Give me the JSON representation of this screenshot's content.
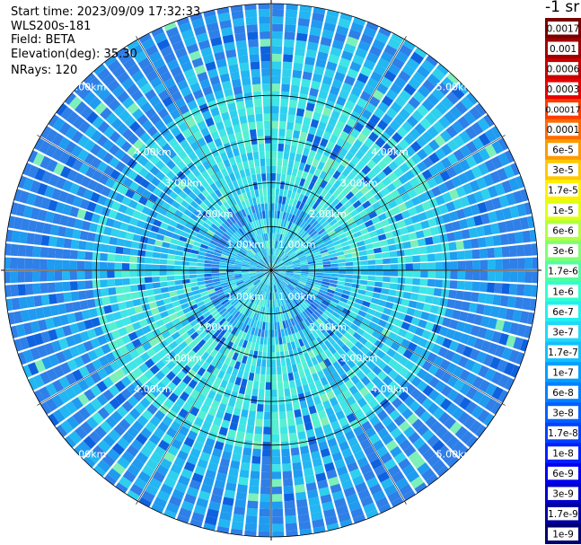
{
  "info": {
    "start_time": "Start time: 2023/09/09 17:32:33",
    "instrument": "WLS200s-181",
    "field": "Field: BETA",
    "elevation": "Elevation(deg): 35.30",
    "nrays": "NRays: 120"
  },
  "colorbar": {
    "unit": "-1 sr",
    "labels": [
      "0.0017",
      "0.001",
      "0.0006",
      "0.0003",
      "0.00017",
      "0.0001",
      "6e-5",
      "3e-5",
      "1.7e-5",
      "1e-5",
      "6e-6",
      "3e-6",
      "1.7e-6",
      "1e-6",
      "6e-7",
      "3e-7",
      "1.7e-7",
      "1e-7",
      "6e-8",
      "3e-8",
      "1.7e-8",
      "1e-8",
      "6e-9",
      "3e-9",
      "1.7e-9",
      "1e-9"
    ],
    "colors": [
      "#7a0000",
      "#a00000",
      "#c80000",
      "#e80000",
      "#ff3c00",
      "#ff6a00",
      "#ff9a00",
      "#ffc800",
      "#fff000",
      "#e0ff10",
      "#b0ff40",
      "#80ff70",
      "#50ffa0",
      "#30ffd0",
      "#20f0f0",
      "#20d8f8",
      "#10c0ff",
      "#00a0ff",
      "#0080ff",
      "#0060ff",
      "#0040ff",
      "#0020ff",
      "#0000f0",
      "#0000c8",
      "#0000a0",
      "#000070"
    ]
  },
  "chart_data": {
    "type": "heatmap",
    "projection": "polar-ppi",
    "nrays": 120,
    "max_range_km": 5.0,
    "range_ring_labels": [
      "1.00km",
      "2.00km",
      "3.00km",
      "4.00km",
      "5.00km"
    ],
    "ring_ranges_km": [
      1,
      2,
      3,
      4,
      5
    ],
    "value_unit": "-1 sr",
    "typical_value_range": [
      "1.7e-7",
      "1.7e-8"
    ],
    "grid": true
  }
}
